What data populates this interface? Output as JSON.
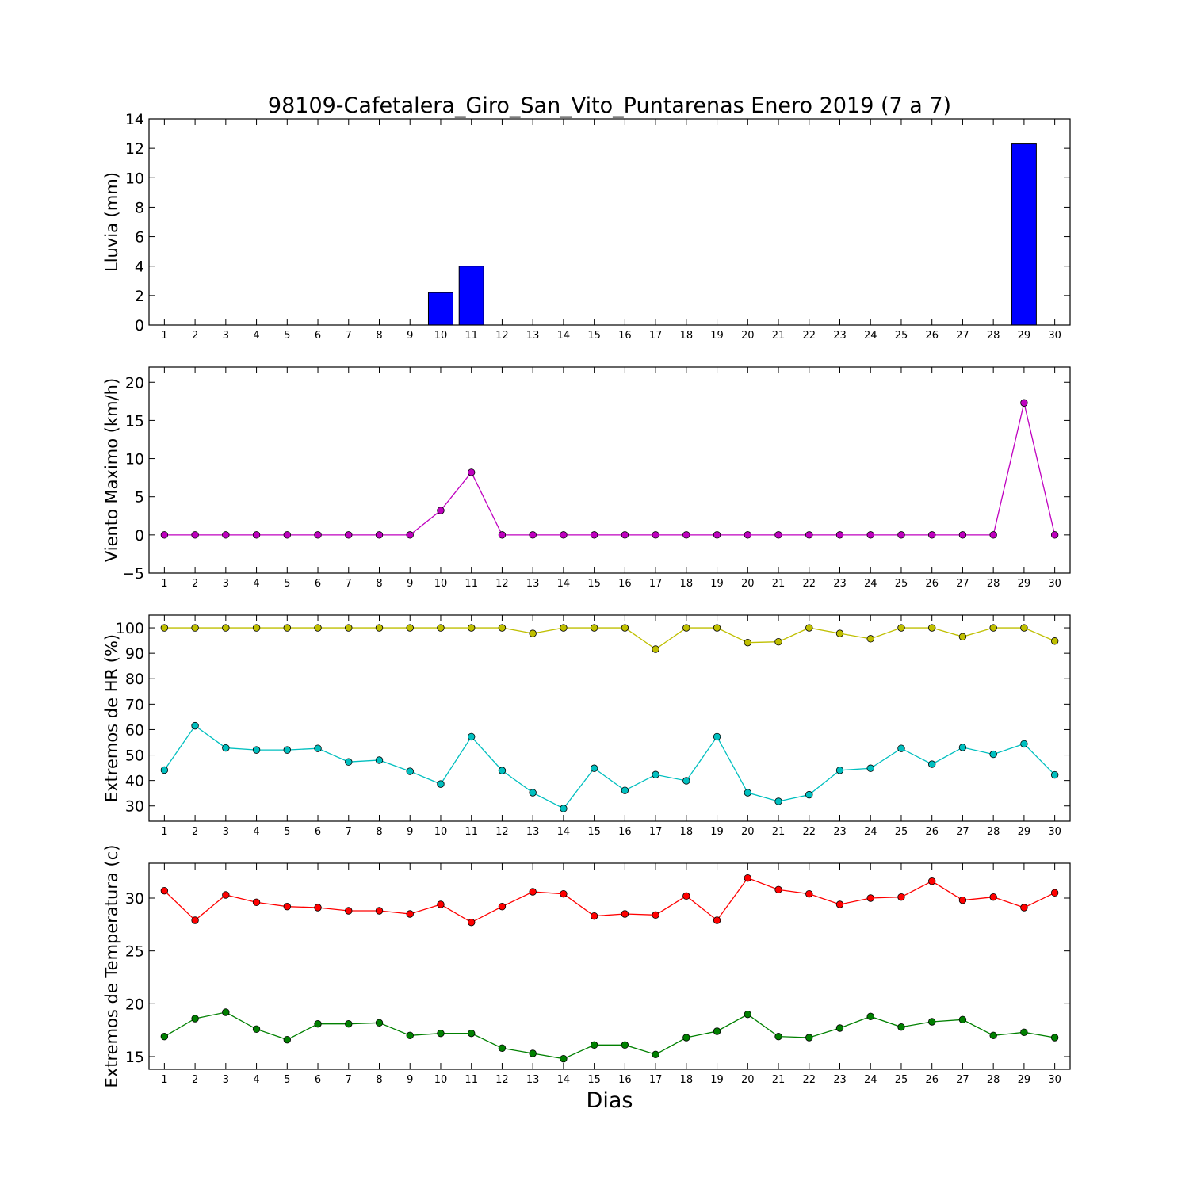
{
  "title": "98109-Cafetalera_Giro_San_Vito_Puntarenas Enero 2019  (7 a 7)",
  "xlabel": "Dias",
  "chart_data": [
    {
      "type": "bar",
      "ylabel": "Lluvia (mm)",
      "x": [
        1,
        2,
        3,
        4,
        5,
        6,
        7,
        8,
        9,
        10,
        11,
        12,
        13,
        14,
        15,
        16,
        17,
        18,
        19,
        20,
        21,
        22,
        23,
        24,
        25,
        26,
        27,
        28,
        29,
        30
      ],
      "ylim": [
        0,
        14
      ],
      "yticks": [
        0,
        2,
        4,
        6,
        8,
        10,
        12,
        14
      ],
      "series": [
        {
          "color": "#0000ff",
          "values": [
            0,
            0,
            0,
            0,
            0,
            0,
            0,
            0,
            0,
            2.2,
            4.0,
            0,
            0,
            0,
            0,
            0,
            0,
            0,
            0,
            0,
            0,
            0,
            0,
            0,
            0,
            0,
            0,
            0,
            12.3,
            0
          ]
        }
      ]
    },
    {
      "type": "line",
      "ylabel": "Viento Maximo (km/h)",
      "x": [
        1,
        2,
        3,
        4,
        5,
        6,
        7,
        8,
        9,
        10,
        11,
        12,
        13,
        14,
        15,
        16,
        17,
        18,
        19,
        20,
        21,
        22,
        23,
        24,
        25,
        26,
        27,
        28,
        29,
        30
      ],
      "ylim": [
        -5,
        22
      ],
      "yticks": [
        -5,
        0,
        5,
        10,
        15,
        20
      ],
      "series": [
        {
          "color": "#bf00bf",
          "values": [
            0,
            0,
            0,
            0,
            0,
            0,
            0,
            0,
            0,
            3.2,
            8.2,
            0,
            0,
            0,
            0,
            0,
            0,
            0,
            0,
            0,
            0,
            0,
            0,
            0,
            0,
            0,
            0,
            0,
            17.3,
            0
          ]
        }
      ]
    },
    {
      "type": "line",
      "ylabel": "Extremos de HR (%)",
      "x": [
        1,
        2,
        3,
        4,
        5,
        6,
        7,
        8,
        9,
        10,
        11,
        12,
        13,
        14,
        15,
        16,
        17,
        18,
        19,
        20,
        21,
        22,
        23,
        24,
        25,
        26,
        27,
        28,
        29,
        30
      ],
      "ylim": [
        24,
        105
      ],
      "yticks": [
        30,
        40,
        50,
        60,
        70,
        80,
        90,
        100
      ],
      "series": [
        {
          "color": "#bfbf00",
          "values": [
            100,
            100,
            100,
            100,
            100,
            100,
            100,
            100,
            100,
            100,
            100,
            100,
            97.8,
            100,
            100,
            100,
            91.6,
            100,
            100,
            94.2,
            94.5,
            100,
            97.8,
            95.7,
            100,
            100,
            96.5,
            100,
            100,
            94.8
          ]
        },
        {
          "color": "#00bfbf",
          "values": [
            44.1,
            61.5,
            52.8,
            52.0,
            52.0,
            52.6,
            47.3,
            48.0,
            43.6,
            38.6,
            57.2,
            43.9,
            35.2,
            29.0,
            44.8,
            36.1,
            42.3,
            39.9,
            57.2,
            35.2,
            31.8,
            34.4,
            44.0,
            44.8,
            52.6,
            46.4,
            53.0,
            50.3,
            54.4,
            42.2
          ]
        }
      ]
    },
    {
      "type": "line",
      "ylabel": "Extremos de Temperatura (c)",
      "xlabel": "Dias",
      "x": [
        1,
        2,
        3,
        4,
        5,
        6,
        7,
        8,
        9,
        10,
        11,
        12,
        13,
        14,
        15,
        16,
        17,
        18,
        19,
        20,
        21,
        22,
        23,
        24,
        25,
        26,
        27,
        28,
        29,
        30
      ],
      "ylim": [
        13.8,
        33.3
      ],
      "yticks": [
        15,
        20,
        25,
        30
      ],
      "series": [
        {
          "color": "#ff0000",
          "values": [
            30.7,
            27.9,
            30.3,
            29.6,
            29.2,
            29.1,
            28.8,
            28.8,
            28.5,
            29.4,
            27.7,
            29.2,
            30.6,
            30.4,
            28.3,
            28.5,
            28.4,
            30.2,
            27.9,
            31.9,
            30.8,
            30.4,
            29.4,
            30.0,
            30.1,
            31.6,
            29.8,
            30.1,
            29.1,
            30.5
          ]
        },
        {
          "color": "#008000",
          "values": [
            16.9,
            18.6,
            19.2,
            17.6,
            16.6,
            18.1,
            18.1,
            18.2,
            17.0,
            17.2,
            17.2,
            15.8,
            15.3,
            14.8,
            16.1,
            16.1,
            15.2,
            16.8,
            17.4,
            19.0,
            16.9,
            16.8,
            17.7,
            18.8,
            17.8,
            18.3,
            18.5,
            17.0,
            17.3,
            16.8
          ]
        }
      ]
    }
  ]
}
